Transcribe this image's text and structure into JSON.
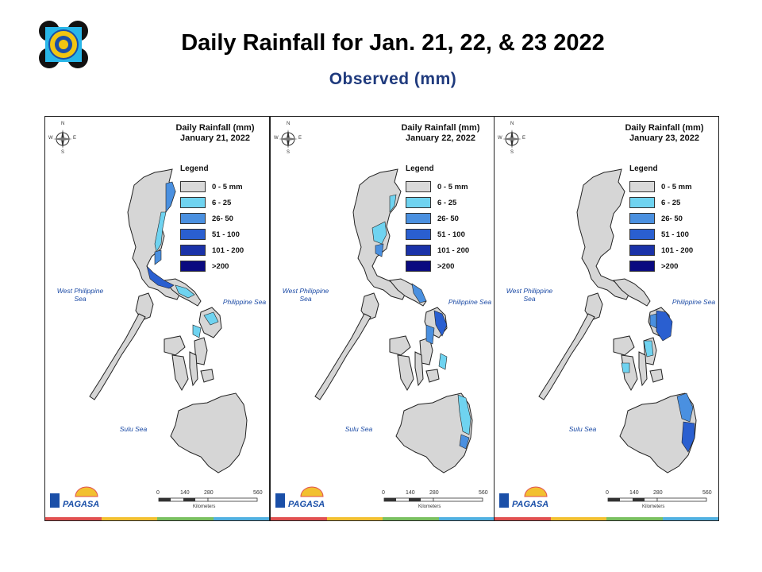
{
  "header": {
    "title": "Daily Rainfall for Jan. 21, 22, & 23 2022",
    "subtitle": "Observed (mm)"
  },
  "colors": {
    "land": "#d6d6d6",
    "border": "#222222",
    "class_0_5": "#d9d9d9",
    "class_6_25": "#6fd3f0",
    "class_26_50": "#4a90e0",
    "class_51_100": "#2a5fd0",
    "class_101_200": "#1a32a8",
    "class_gt200": "#0a0a80",
    "title_blue": "#1f3a7d",
    "sea_label": "#1b4aa5"
  },
  "legend": {
    "title": "Legend",
    "items": [
      {
        "label": "0 - 5 mm",
        "color": "#d9d9d9"
      },
      {
        "label": "6 - 25",
        "color": "#6fd3f0"
      },
      {
        "label": "26- 50",
        "color": "#4a90e0"
      },
      {
        "label": "51 - 100",
        "color": "#2a5fd0"
      },
      {
        "label": "101 - 200",
        "color": "#1a32a8"
      },
      {
        "label": ">200",
        "color": "#0a0a80"
      }
    ]
  },
  "map_labels": {
    "west_sea": "West Philippine Sea",
    "east_sea": "Philippine Sea",
    "sulu": "Sulu Sea",
    "scale_ticks": [
      "0",
      "140",
      "280",
      "560"
    ],
    "scale_unit": "Kilometers",
    "compass": {
      "n": "N",
      "e": "E",
      "s": "S",
      "w": "W"
    },
    "agency": "PAGASA"
  },
  "panels": [
    {
      "title_line1": "Daily Rainfall (mm)",
      "title_line2": "January 21, 2022",
      "rain_regions": [
        "Cagayan east coast",
        "Aurora",
        "Quezon",
        "Bicol",
        "Eastern Samar"
      ]
    },
    {
      "title_line1": "Daily Rainfall (mm)",
      "title_line2": "January 22, 2022",
      "rain_regions": [
        "Aurora",
        "Catanduanes",
        "Eastern Samar",
        "Leyte",
        "Surigao",
        "Davao Oriental"
      ]
    },
    {
      "title_line1": "Daily Rainfall (mm)",
      "title_line2": "January 23, 2022",
      "rain_regions": [
        "Eastern Samar",
        "Northern Samar",
        "Leyte",
        "Surigao del Sur",
        "Davao Oriental"
      ]
    }
  ]
}
